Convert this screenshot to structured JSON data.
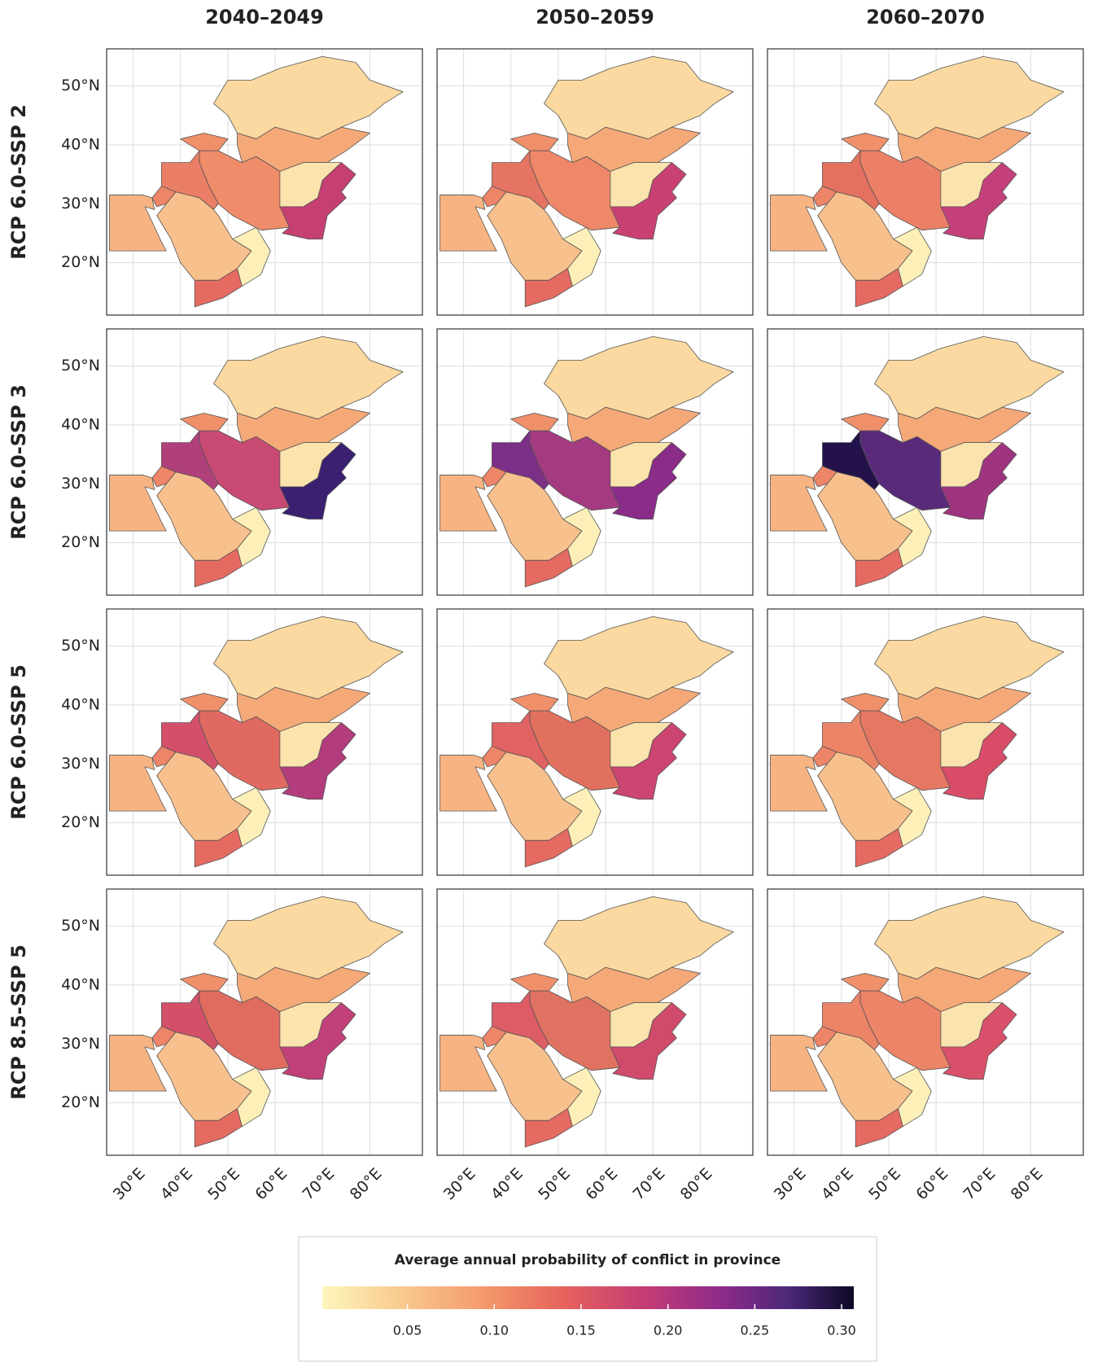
{
  "column_titles": [
    "2040–2049",
    "2050–2059",
    "2060–2070"
  ],
  "row_labels": [
    "RCP 6.0-SSP 2",
    "RCP 6.0-SSP 3",
    "RCP 6.0-SSP 5",
    "RCP 8.5-SSP 5"
  ],
  "map": {
    "xlim": [
      24.4,
      91.1
    ],
    "ylim": [
      11.1,
      56.3
    ],
    "xticks": [
      {
        "value": 30,
        "label": "30°E"
      },
      {
        "value": 40,
        "label": "40°E"
      },
      {
        "value": 50,
        "label": "50°E"
      },
      {
        "value": 60,
        "label": "60°E"
      },
      {
        "value": 70,
        "label": "70°E"
      },
      {
        "value": 80,
        "label": "80°E"
      }
    ],
    "yticks": [
      {
        "value": 20,
        "label": "20°N"
      },
      {
        "value": 30,
        "label": "30°N"
      },
      {
        "value": 40,
        "label": "40°N"
      },
      {
        "value": 50,
        "label": "50°N"
      }
    ]
  },
  "legend": {
    "title": "Average annual probability of conflict in province",
    "lim": [
      0.001,
      0.307
    ],
    "ticks": [
      0.05,
      {
        "value": 0.1,
        "label": "0.10"
      },
      0.15,
      {
        "value": 0.2,
        "label": "0.20"
      },
      0.25,
      {
        "value": 0.3,
        "label": "0.30"
      }
    ]
  }
}
